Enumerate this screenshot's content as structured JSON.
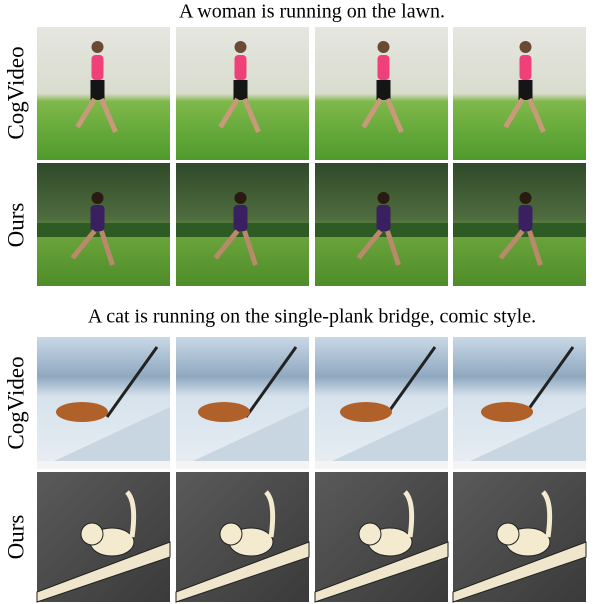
{
  "sections": [
    {
      "caption": "A woman is running on the lawn.",
      "rows": [
        {
          "label": "CogVideo"
        },
        {
          "label": "Ours"
        }
      ]
    },
    {
      "caption": "A cat is running on the single-plank bridge, comic style.",
      "rows": [
        {
          "label": "CogVideo"
        },
        {
          "label": "Ours"
        }
      ]
    }
  ]
}
